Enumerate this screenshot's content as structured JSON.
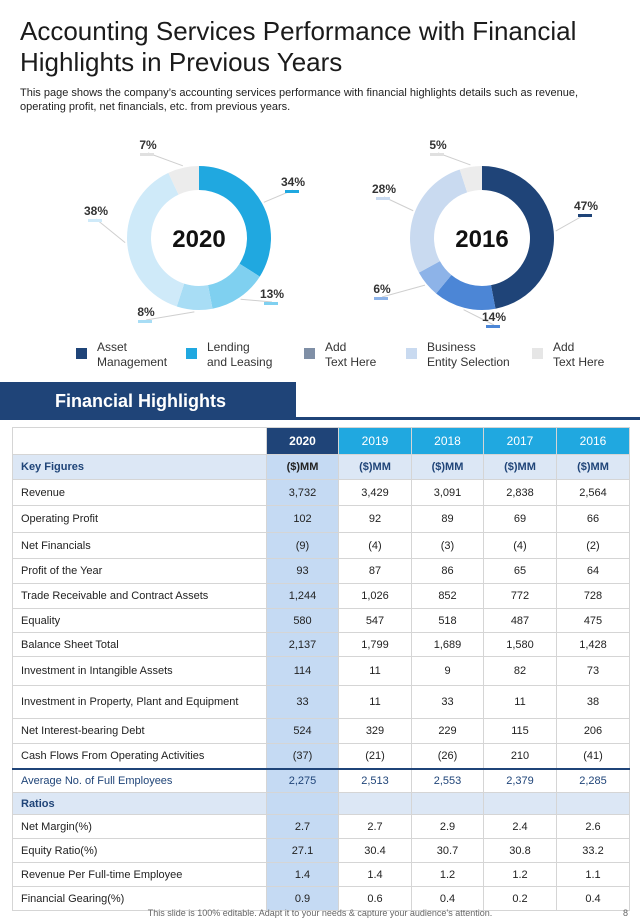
{
  "header": {
    "title": "Accounting Services Performance with Financial Highlights in Previous Years",
    "subtitle": "This page shows the company’s accounting services performance  with financial highlights details such as revenue,  operating profit,  net financials, etc. from previous  years."
  },
  "colors": {
    "asset": "#1f4478",
    "lending": "#20a8e0",
    "gray_blue": "#7f8fa6",
    "light_blue": "#c9daf0",
    "light_gray": "#e6e6e6"
  },
  "chart_data": [
    {
      "type": "pie",
      "center_label": "2020",
      "slices": [
        {
          "label": "34%",
          "value": 34,
          "color": "#20a8e0"
        },
        {
          "label": "13%",
          "value": 13,
          "color": "#7fd0f0"
        },
        {
          "label": "8%",
          "value": 8,
          "color": "#a8ddf5"
        },
        {
          "label": "38%",
          "value": 38,
          "color": "#cfeaf9"
        },
        {
          "label": "7%",
          "value": 7,
          "color": "#ececec"
        }
      ]
    },
    {
      "type": "pie",
      "center_label": "2016",
      "slices": [
        {
          "label": "47%",
          "value": 47,
          "color": "#1f4478"
        },
        {
          "label": "14%",
          "value": 14,
          "color": "#4c86d6"
        },
        {
          "label": "6%",
          "value": 6,
          "color": "#8db3e8"
        },
        {
          "label": "28%",
          "value": 28,
          "color": "#c9daf0"
        },
        {
          "label": "5%",
          "value": 5,
          "color": "#ececec"
        }
      ]
    }
  ],
  "legend": [
    {
      "label": "Asset\nManagement",
      "color": "#1f4478"
    },
    {
      "label": "Lending\nand Leasing",
      "color": "#20a8e0"
    },
    {
      "label": "Add\nText Here",
      "color": "#7f8fa6"
    },
    {
      "label": "Business\nEntity Selection",
      "color": "#c9daf0"
    },
    {
      "label": "Add\nText Here",
      "color": "#e6e6e6"
    }
  ],
  "banner": "Financial Highlights",
  "table": {
    "years": [
      "2020",
      "2019",
      "2018",
      "2017",
      "2016"
    ],
    "rows": [
      {
        "label": "Key Figures",
        "values": [
          "($)MM",
          "($)MM",
          "($)MM",
          "($)MM",
          "($)MM"
        ],
        "kind": "section"
      },
      {
        "label": "Revenue",
        "values": [
          "3,732",
          "3,429",
          "3,091",
          "2,838",
          "2,564"
        ]
      },
      {
        "label": "Operating Profit",
        "values": [
          "102",
          "92",
          "89",
          "69",
          "66"
        ]
      },
      {
        "label": "Net Financials",
        "values": [
          "(9)",
          "(4)",
          "(3)",
          "(4)",
          "(2)"
        ]
      },
      {
        "label": "Profit of the Year",
        "values": [
          "93",
          "87",
          "86",
          "65",
          "64"
        ]
      },
      {
        "label": "Trade Receivable and Contract  Assets",
        "values": [
          "1,244",
          "1,026",
          "852",
          "772",
          "728"
        ]
      },
      {
        "label": "Equality",
        "values": [
          "580",
          "547",
          "518",
          "487",
          "475"
        ]
      },
      {
        "label": "Balance Sheet Total",
        "values": [
          "2,137",
          "1,799",
          "1,689",
          "1,580",
          "1,428"
        ]
      },
      {
        "label": "Investment in Intangible Assets",
        "values": [
          "114",
          "11",
          "9",
          "82",
          "73"
        ]
      },
      {
        "label": "Investment in Property, Plant and Equipment",
        "values": [
          "33",
          "11",
          "33",
          "11",
          "38"
        ]
      },
      {
        "label": "Net Interest-bearing  Debt",
        "values": [
          "524",
          "329",
          "229",
          "115",
          "206"
        ]
      },
      {
        "label": "Cash Flows From Operating Activities",
        "values": [
          "(37)",
          "(21)",
          "(26)",
          "210",
          "(41)"
        ]
      },
      {
        "label": "Average  No. of Full Employees",
        "values": [
          "2,275",
          "2,513",
          "2,553",
          "2,379",
          "2,285"
        ],
        "kind": "avg"
      },
      {
        "label": "Ratios",
        "values": [
          "",
          "",
          "",
          "",
          ""
        ],
        "kind": "section"
      },
      {
        "label": "Net Margin(%)",
        "values": [
          "2.7",
          "2.7",
          "2.9",
          "2.4",
          "2.6"
        ]
      },
      {
        "label": "Equity Ratio(%)",
        "values": [
          "27.1",
          "30.4",
          "30.7",
          "30.8",
          "33.2"
        ]
      },
      {
        "label": "Revenue Per Full-time Employee",
        "values": [
          "1.4",
          "1.4",
          "1.2",
          "1.2",
          "1.1"
        ]
      },
      {
        "label": "Financial Gearing(%)",
        "values": [
          "0.9",
          "0.6",
          "0.4",
          "0.2",
          "0.4"
        ]
      }
    ]
  },
  "footer": {
    "note": "This slide is 100% editable.  Adapt it to your needs & capture your audience’s attention.",
    "page": "8"
  }
}
